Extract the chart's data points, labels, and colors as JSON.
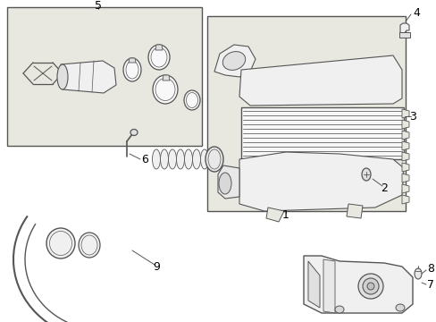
{
  "bg_color": "#ffffff",
  "box_fill": "#e8e8e0",
  "line_color": "#555555",
  "label_color": "#000000",
  "fig_width": 4.89,
  "fig_height": 3.6,
  "dpi": 100
}
